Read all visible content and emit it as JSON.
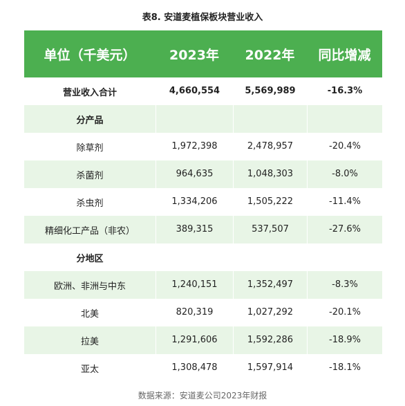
{
  "title": "表8. 安道麦植保板块营业收入",
  "header": [
    "单位（千美元）",
    "2023年",
    "2022年",
    "同比增减"
  ],
  "rows": [
    {
      "label": "营业收入合计",
      "v2023": "4,660,554",
      "v2022": "5,569,989",
      "yoy": "-16.3%"
    },
    {
      "label": "分产品",
      "v2023": "",
      "v2022": "",
      "yoy": ""
    },
    {
      "label": "除草剂",
      "v2023": "1,972,398",
      "v2022": "2,478,957",
      "yoy": "-20.4%"
    },
    {
      "label": "杀菌剂",
      "v2023": "964,635",
      "v2022": "1,048,303",
      "yoy": "-8.0%"
    },
    {
      "label": "杀虫剂",
      "v2023": "1,334,206",
      "v2022": "1,505,222",
      "yoy": "-11.4%"
    },
    {
      "label": "精细化工产品（非农）",
      "v2023": "389,315",
      "v2022": "537,507",
      "yoy": "-27.6%"
    },
    {
      "label": "分地区",
      "v2023": "",
      "v2022": "",
      "yoy": ""
    },
    {
      "label": "欧洲、非洲与中东",
      "v2023": "1,240,151",
      "v2022": "1,352,497",
      "yoy": "-8.3%"
    },
    {
      "label": "北美",
      "v2023": "820,319",
      "v2022": "1,027,292",
      "yoy": "-20.1%"
    },
    {
      "label": "拉美",
      "v2023": "1,291,606",
      "v2022": "1,592,286",
      "yoy": "-18.9%"
    },
    {
      "label": "亚太",
      "v2023": "1,308,478",
      "v2022": "1,597,914",
      "yoy": "-18.1%"
    }
  ],
  "footer": "数据来源：安道麦公司2023年财报",
  "colors": {
    "header_bg": "#4caf50",
    "alt_row_bg": "#e8f5e6"
  }
}
